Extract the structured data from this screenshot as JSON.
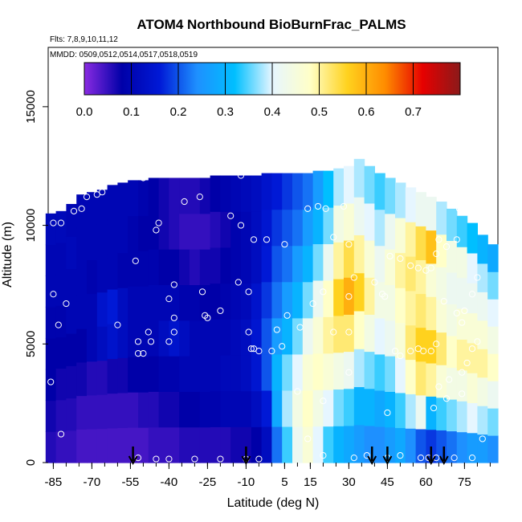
{
  "chart_data": {
    "type": "heatmap",
    "title": "ATOM4 Northbound BioBurnFrac_PALMS",
    "subtitle_flights": "Flts: 7,8,9,10,11,12",
    "subtitle_dates": "MMDD: 0509,0512,0514,0517,0518,0519",
    "xlabel": "Latitude (deg N)",
    "ylabel": "Altitude (m)",
    "xlim": [
      -87,
      88
    ],
    "ylim": [
      0,
      17500
    ],
    "x_ticks": [
      -85,
      -70,
      -55,
      -40,
      -25,
      -10,
      5,
      15,
      30,
      45,
      60,
      75
    ],
    "x_tick_labels": [
      "-85",
      "-70",
      "-55",
      "-40",
      "-25",
      "-10",
      "5",
      "15",
      "30",
      "45",
      "60",
      "75"
    ],
    "y_ticks": [
      0,
      5000,
      10000,
      15000
    ],
    "y_tick_labels": [
      "0",
      "5000",
      "10000",
      "15000"
    ],
    "colorbar": {
      "range": [
        0,
        0.8
      ],
      "tick_values": [
        0.0,
        0.1,
        0.2,
        0.3,
        0.4,
        0.5,
        0.6,
        0.7
      ],
      "tick_labels": [
        "0.0",
        "0.1",
        "0.2",
        "0.3",
        "0.4",
        "0.5",
        "0.6",
        "0.7"
      ],
      "colors": [
        "#8a2be2",
        "#0000a8",
        "#0019d6",
        "#1e90ff",
        "#00bfff",
        "#e6f6ff",
        "#ffffc8",
        "#ffd21e",
        "#ff8c00",
        "#e60000",
        "#8b1a1a"
      ]
    },
    "arrow_latitudes": [
      -54,
      -10,
      39,
      45,
      62,
      67
    ],
    "columns": [
      {
        "lat": -86,
        "top": 10500,
        "values": [
          0.06,
          0.07,
          0.08,
          0.08,
          0.09,
          0.1,
          0.1,
          0.11
        ]
      },
      {
        "lat": -82,
        "top": 10600,
        "values": [
          0.05,
          0.06,
          0.07,
          0.08,
          0.09,
          0.1,
          0.1,
          0.11
        ]
      },
      {
        "lat": -78,
        "top": 10900,
        "values": [
          0.05,
          0.06,
          0.07,
          0.08,
          0.1,
          0.1,
          0.11,
          0.1
        ]
      },
      {
        "lat": -74,
        "top": 11300,
        "values": [
          0.04,
          0.05,
          0.07,
          0.08,
          0.1,
          0.1,
          0.1,
          0.1
        ]
      },
      {
        "lat": -70,
        "top": 11400,
        "values": [
          0.04,
          0.05,
          0.06,
          0.1,
          0.1,
          0.09,
          0.1,
          0.1
        ]
      },
      {
        "lat": -66,
        "top": 11500,
        "values": [
          0.04,
          0.05,
          0.06,
          0.12,
          0.14,
          0.1,
          0.1,
          0.1
        ]
      },
      {
        "lat": -62,
        "top": 11700,
        "values": [
          0.04,
          0.05,
          0.07,
          0.14,
          0.16,
          0.1,
          0.1,
          0.1
        ]
      },
      {
        "lat": -58,
        "top": 11800,
        "values": [
          0.04,
          0.05,
          0.07,
          0.12,
          0.12,
          0.09,
          0.1,
          0.1
        ]
      },
      {
        "lat": -54,
        "top": 11900,
        "values": [
          0.04,
          0.05,
          0.08,
          0.1,
          0.1,
          0.09,
          0.09,
          0.1
        ]
      },
      {
        "lat": -50,
        "top": 11900,
        "values": [
          0.04,
          0.06,
          0.08,
          0.1,
          0.1,
          0.09,
          0.08,
          0.09
        ]
      },
      {
        "lat": -46,
        "top": 12000,
        "values": [
          0.05,
          0.06,
          0.08,
          0.1,
          0.1,
          0.09,
          0.08,
          0.08
        ]
      },
      {
        "lat": -42,
        "top": 12000,
        "values": [
          0.05,
          0.07,
          0.09,
          0.12,
          0.1,
          0.08,
          0.07,
          0.07
        ]
      },
      {
        "lat": -38,
        "top": 12000,
        "values": [
          0.05,
          0.07,
          0.09,
          0.14,
          0.1,
          0.08,
          0.06,
          0.06
        ]
      },
      {
        "lat": -34,
        "top": 12000,
        "values": [
          0.06,
          0.08,
          0.1,
          0.12,
          0.09,
          0.07,
          0.05,
          0.06
        ]
      },
      {
        "lat": -30,
        "top": 12000,
        "values": [
          0.06,
          0.08,
          0.1,
          0.1,
          0.09,
          0.06,
          0.05,
          0.06
        ]
      },
      {
        "lat": -26,
        "top": 12000,
        "values": [
          0.06,
          0.09,
          0.1,
          0.1,
          0.08,
          0.07,
          0.05,
          0.07
        ]
      },
      {
        "lat": -22,
        "top": 12100,
        "values": [
          0.06,
          0.09,
          0.1,
          0.1,
          0.08,
          0.07,
          0.06,
          0.08
        ]
      },
      {
        "lat": -18,
        "top": 12100,
        "values": [
          0.06,
          0.1,
          0.11,
          0.1,
          0.09,
          0.08,
          0.07,
          0.09
        ]
      },
      {
        "lat": -14,
        "top": 12100,
        "values": [
          0.07,
          0.1,
          0.11,
          0.11,
          0.1,
          0.09,
          0.09,
          0.1
        ]
      },
      {
        "lat": -10,
        "top": 12100,
        "values": [
          0.07,
          0.1,
          0.12,
          0.12,
          0.11,
          0.1,
          0.1,
          0.11
        ]
      },
      {
        "lat": -6,
        "top": 12100,
        "values": [
          0.08,
          0.12,
          0.15,
          0.15,
          0.14,
          0.12,
          0.12,
          0.12
        ]
      },
      {
        "lat": -2,
        "top": 12200,
        "values": [
          0.12,
          0.16,
          0.2,
          0.2,
          0.18,
          0.16,
          0.15,
          0.14
        ]
      },
      {
        "lat": 2,
        "top": 12200,
        "values": [
          0.22,
          0.28,
          0.3,
          0.26,
          0.22,
          0.2,
          0.18,
          0.16
        ]
      },
      {
        "lat": 6,
        "top": 12200,
        "values": [
          0.34,
          0.38,
          0.36,
          0.3,
          0.26,
          0.22,
          0.2,
          0.18
        ]
      },
      {
        "lat": 10,
        "top": 12200,
        "values": [
          0.42,
          0.44,
          0.4,
          0.36,
          0.3,
          0.26,
          0.22,
          0.2
        ]
      },
      {
        "lat": 14,
        "top": 12200,
        "values": [
          0.46,
          0.48,
          0.46,
          0.42,
          0.36,
          0.3,
          0.26,
          0.22
        ]
      },
      {
        "lat": 18,
        "top": 12300,
        "values": [
          0.4,
          0.44,
          0.48,
          0.46,
          0.42,
          0.36,
          0.3,
          0.26
        ]
      },
      {
        "lat": 22,
        "top": 12300,
        "values": [
          0.34,
          0.4,
          0.46,
          0.5,
          0.48,
          0.42,
          0.36,
          0.32
        ]
      },
      {
        "lat": 26,
        "top": 12400,
        "values": [
          0.3,
          0.36,
          0.44,
          0.52,
          0.56,
          0.5,
          0.44,
          0.38
        ]
      },
      {
        "lat": 30,
        "top": 12500,
        "values": [
          0.28,
          0.34,
          0.42,
          0.52,
          0.6,
          0.54,
          0.46,
          0.4
        ]
      },
      {
        "lat": 34,
        "top": 12800,
        "values": [
          0.26,
          0.3,
          0.38,
          0.48,
          0.56,
          0.5,
          0.42,
          0.38
        ]
      },
      {
        "lat": 38,
        "top": 12500,
        "values": [
          0.24,
          0.3,
          0.36,
          0.44,
          0.5,
          0.46,
          0.4,
          0.36
        ]
      },
      {
        "lat": 42,
        "top": 12200,
        "values": [
          0.24,
          0.28,
          0.34,
          0.4,
          0.44,
          0.42,
          0.38,
          0.34
        ]
      },
      {
        "lat": 46,
        "top": 12000,
        "values": [
          0.26,
          0.3,
          0.36,
          0.42,
          0.44,
          0.46,
          0.42,
          0.36
        ]
      },
      {
        "lat": 50,
        "top": 11800,
        "values": [
          0.28,
          0.34,
          0.4,
          0.46,
          0.48,
          0.5,
          0.46,
          0.38
        ]
      },
      {
        "lat": 54,
        "top": 11600,
        "values": [
          0.24,
          0.38,
          0.48,
          0.52,
          0.5,
          0.52,
          0.5,
          0.4
        ]
      },
      {
        "lat": 58,
        "top": 11400,
        "values": [
          0.2,
          0.42,
          0.52,
          0.56,
          0.52,
          0.5,
          0.54,
          0.42
        ]
      },
      {
        "lat": 62,
        "top": 11200,
        "values": [
          0.18,
          0.3,
          0.5,
          0.56,
          0.5,
          0.46,
          0.58,
          0.42
        ]
      },
      {
        "lat": 66,
        "top": 11000,
        "values": [
          0.2,
          0.34,
          0.46,
          0.52,
          0.46,
          0.44,
          0.48,
          0.38
        ]
      },
      {
        "lat": 70,
        "top": 10700,
        "values": [
          0.22,
          0.36,
          0.44,
          0.48,
          0.44,
          0.42,
          0.44,
          0.36
        ]
      },
      {
        "lat": 74,
        "top": 10400,
        "values": [
          0.24,
          0.38,
          0.44,
          0.5,
          0.46,
          0.42,
          0.44,
          0.34
        ]
      },
      {
        "lat": 78,
        "top": 10100,
        "values": [
          0.26,
          0.4,
          0.46,
          0.5,
          0.46,
          0.42,
          0.4,
          0.32
        ]
      },
      {
        "lat": 82,
        "top": 9600,
        "values": [
          0.26,
          0.38,
          0.44,
          0.5,
          0.46,
          0.42,
          0.38,
          0.3
        ]
      },
      {
        "lat": 86,
        "top": 9200,
        "values": [
          0.24,
          0.36,
          0.42,
          0.48,
          0.44,
          0.4,
          0.36,
          0.28
        ]
      }
    ],
    "sample_points": [
      [
        -85,
        10100
      ],
      [
        -82,
        10100
      ],
      [
        -77,
        10600
      ],
      [
        -74,
        10700
      ],
      [
        -72,
        11200
      ],
      [
        -68,
        11300
      ],
      [
        -66,
        11400
      ],
      [
        -50,
        12000
      ],
      [
        -34,
        11000
      ],
      [
        -28,
        11200
      ],
      [
        -44,
        10100
      ],
      [
        -45,
        9800
      ],
      [
        -53,
        8500
      ],
      [
        -38,
        7500
      ],
      [
        -27,
        7200
      ],
      [
        -40,
        6900
      ],
      [
        -26,
        6200
      ],
      [
        -25,
        6100
      ],
      [
        -80,
        6700
      ],
      [
        -85,
        7100
      ],
      [
        -83,
        5800
      ],
      [
        -60,
        5800
      ],
      [
        -48,
        5500
      ],
      [
        -52,
        5100
      ],
      [
        -47,
        5100
      ],
      [
        -52,
        4600
      ],
      [
        -50,
        4600
      ],
      [
        -40,
        5100
      ],
      [
        -38,
        5500
      ],
      [
        -38,
        6100
      ],
      [
        -12,
        12100
      ],
      [
        -12,
        10000
      ],
      [
        -16,
        10400
      ],
      [
        -7,
        9400
      ],
      [
        -2,
        9400
      ],
      [
        -13,
        7600
      ],
      [
        -9,
        7200
      ],
      [
        -20,
        6400
      ],
      [
        -9,
        5500
      ],
      [
        -7,
        4800
      ],
      [
        -8,
        4800
      ],
      [
        -5,
        4700
      ],
      [
        0,
        4700
      ],
      [
        2,
        5600
      ],
      [
        6,
        6200
      ],
      [
        11,
        5700
      ],
      [
        16,
        6700
      ],
      [
        20,
        7200
      ],
      [
        24,
        5500
      ],
      [
        30,
        5500
      ],
      [
        30,
        7000
      ],
      [
        32,
        7800
      ],
      [
        40,
        7600
      ],
      [
        44,
        7000
      ],
      [
        43,
        7100
      ],
      [
        46,
        8700
      ],
      [
        50,
        8600
      ],
      [
        54,
        8300
      ],
      [
        57,
        8200
      ],
      [
        60,
        8100
      ],
      [
        62,
        8200
      ],
      [
        64,
        8800
      ],
      [
        65,
        9400
      ],
      [
        68,
        9100
      ],
      [
        72,
        9400
      ],
      [
        73,
        10700
      ],
      [
        75,
        10700
      ],
      [
        69,
        11200
      ],
      [
        71,
        11300
      ],
      [
        73,
        11200
      ],
      [
        14,
        10700
      ],
      [
        18,
        10800
      ],
      [
        21,
        10700
      ],
      [
        28,
        10800
      ],
      [
        24,
        9500
      ],
      [
        30,
        9200
      ],
      [
        5,
        9200
      ],
      [
        4,
        4900
      ],
      [
        10,
        3000
      ],
      [
        14,
        1000
      ],
      [
        20,
        2600
      ],
      [
        30,
        3800
      ],
      [
        45,
        2100
      ],
      [
        54,
        4700
      ],
      [
        48,
        4700
      ],
      [
        50,
        4500
      ],
      [
        57,
        4800
      ],
      [
        59,
        4700
      ],
      [
        62,
        4700
      ],
      [
        64,
        5000
      ],
      [
        67,
        6800
      ],
      [
        72,
        6300
      ],
      [
        74,
        5900
      ],
      [
        75,
        6400
      ],
      [
        78,
        7100
      ],
      [
        80,
        7800
      ],
      [
        78,
        4800
      ],
      [
        80,
        5100
      ],
      [
        76,
        4200
      ],
      [
        74,
        3800
      ],
      [
        69,
        3500
      ],
      [
        65,
        3200
      ],
      [
        74,
        2900
      ],
      [
        68,
        2700
      ],
      [
        63,
        2300
      ],
      [
        -86,
        3400
      ],
      [
        -82,
        1200
      ],
      [
        -52,
        200
      ],
      [
        -45,
        150
      ],
      [
        -40,
        150
      ],
      [
        -30,
        150
      ],
      [
        -20,
        150
      ],
      [
        -10,
        150
      ],
      [
        -5,
        150
      ],
      [
        20,
        300
      ],
      [
        32,
        200
      ],
      [
        37,
        300
      ],
      [
        45,
        200
      ],
      [
        50,
        300
      ],
      [
        58,
        200
      ],
      [
        61,
        200
      ],
      [
        64,
        200
      ],
      [
        71,
        200
      ],
      [
        78,
        200
      ],
      [
        82,
        1000
      ]
    ]
  }
}
